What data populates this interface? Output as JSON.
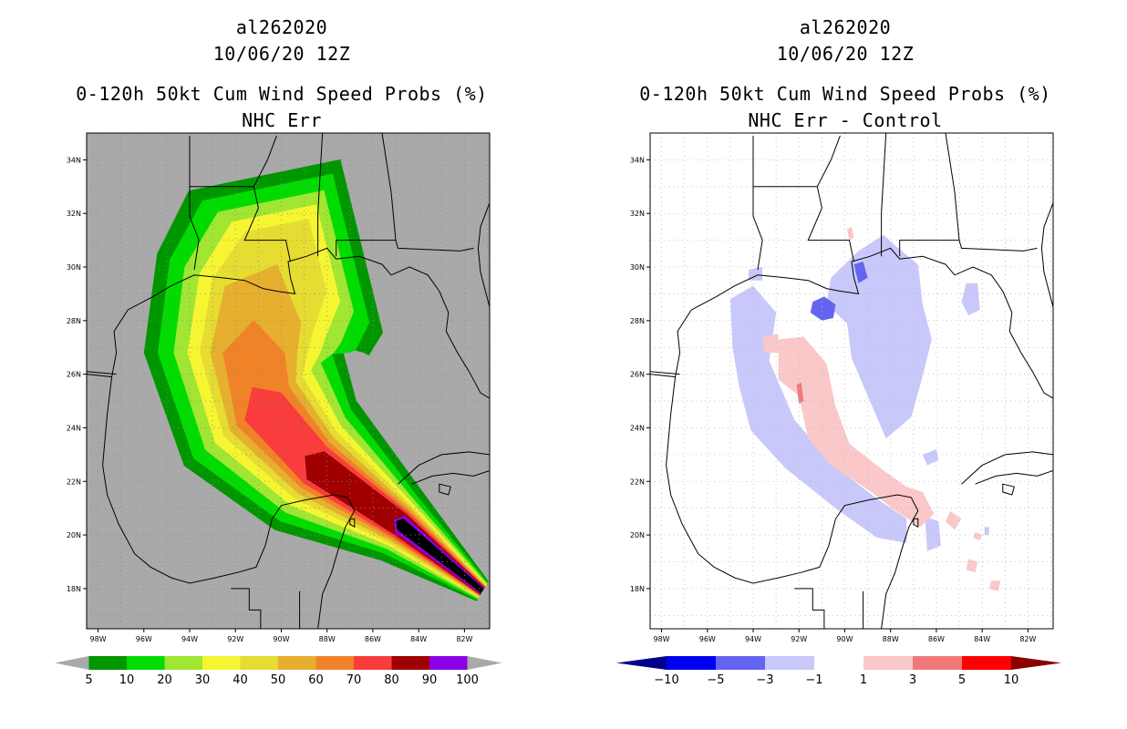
{
  "chart_data": [
    {
      "type": "heatmap",
      "storm_id": "al262020",
      "date": "10/06/20 12Z",
      "title": "0-120h 50kt Cum Wind Speed Probs (%)",
      "subtitle": "NHC Err",
      "xticks": [
        "98W",
        "96W",
        "94W",
        "92W",
        "90W",
        "88W",
        "86W",
        "84W",
        "82W"
      ],
      "yticks": [
        "34N",
        "32N",
        "30N",
        "28N",
        "26N",
        "24N",
        "22N",
        "20N",
        "18N"
      ],
      "xlim": [
        -98.5,
        -80.9
      ],
      "ylim": [
        16.5,
        35.0
      ],
      "background": "#a9a9a9",
      "colorbar": {
        "labels": [
          "5",
          "10",
          "20",
          "30",
          "40",
          "50",
          "60",
          "70",
          "80",
          "90",
          "100"
        ],
        "colors": [
          "#009600",
          "#00dc00",
          "#a0e632",
          "#f5f532",
          "#e6dc32",
          "#e6af2d",
          "#f08228",
          "#fa3c3c",
          "#a00000",
          "#8c00e6"
        ]
      },
      "track": [
        [
          -81.2,
          17.9
        ],
        [
          -84.8,
          20.4
        ],
        [
          -88.5,
          22.6
        ],
        [
          -90.8,
          24.8
        ],
        [
          -91.2,
          26.8
        ],
        [
          -90.8,
          28.6
        ],
        [
          -89.8,
          30.2
        ]
      ],
      "band_halfwidths": {
        "5": [
          0.45,
          1.6,
          3.0,
          4.1,
          4.8,
          5.0,
          5.0
        ],
        "10": [
          0.4,
          1.3,
          2.6,
          3.6,
          4.2,
          4.4,
          4.3
        ],
        "20": [
          0.35,
          1.1,
          2.2,
          3.0,
          3.5,
          3.7,
          3.5
        ],
        "30": [
          0.3,
          0.95,
          1.85,
          2.5,
          2.9,
          3.0,
          2.8
        ],
        "40": [
          0.27,
          0.85,
          1.55,
          2.05,
          2.35,
          2.4,
          2.1
        ],
        "50": [
          0.24,
          0.75,
          1.3,
          1.7,
          1.9,
          1.8,
          0
        ],
        "60": [
          0.21,
          0.65,
          1.05,
          1.35,
          1.35,
          0,
          0
        ],
        "70": [
          0.19,
          0.57,
          0.85,
          0.95,
          0,
          0,
          0
        ],
        "80": [
          0.17,
          0.47,
          0.65,
          0,
          0,
          0,
          0
        ],
        "90": [
          0.14,
          0.37,
          0,
          0,
          0,
          0,
          0
        ],
        "100": [
          0.1,
          0.25,
          0,
          0,
          0,
          0,
          0
        ]
      }
    },
    {
      "type": "heatmap",
      "storm_id": "al262020",
      "date": "10/06/20 12Z",
      "title": "0-120h 50kt Cum Wind Speed Probs (%)",
      "subtitle": "NHC Err - Control",
      "xticks": [
        "98W",
        "96W",
        "94W",
        "92W",
        "90W",
        "88W",
        "86W",
        "84W",
        "82W"
      ],
      "yticks": [
        "34N",
        "32N",
        "30N",
        "28N",
        "26N",
        "24N",
        "22N",
        "20N",
        "18N"
      ],
      "xlim": [
        -98.5,
        -80.9
      ],
      "ylim": [
        16.5,
        35.0
      ],
      "background": "#ffffff",
      "colorbar": {
        "labels": [
          "-10",
          "-5",
          "-3",
          "-1",
          "1",
          "3",
          "5",
          "10"
        ],
        "colors": [
          "#00008c",
          "#0000f0",
          "#6464f0",
          "#c8c8fa",
          "#ffffff",
          "#fac8c8",
          "#f07878",
          "#ff0000",
          "#8c0000"
        ]
      },
      "anomalies": [
        {
          "sign": "negative",
          "level": "-3..-1",
          "region": "west of track, 94W-88W, 19N-29N"
        },
        {
          "sign": "negative",
          "level": "-3..-1",
          "region": "east of track, 91W-86W, 23N-31N"
        },
        {
          "sign": "negative",
          "level": "-5..-3",
          "region": "near 91W 28.5N"
        },
        {
          "sign": "positive",
          "level": "1..3",
          "region": "along track, 92W-86W, 19N-27N"
        },
        {
          "sign": "positive",
          "level": "3..5",
          "region": "near 92W 25N"
        }
      ]
    }
  ]
}
